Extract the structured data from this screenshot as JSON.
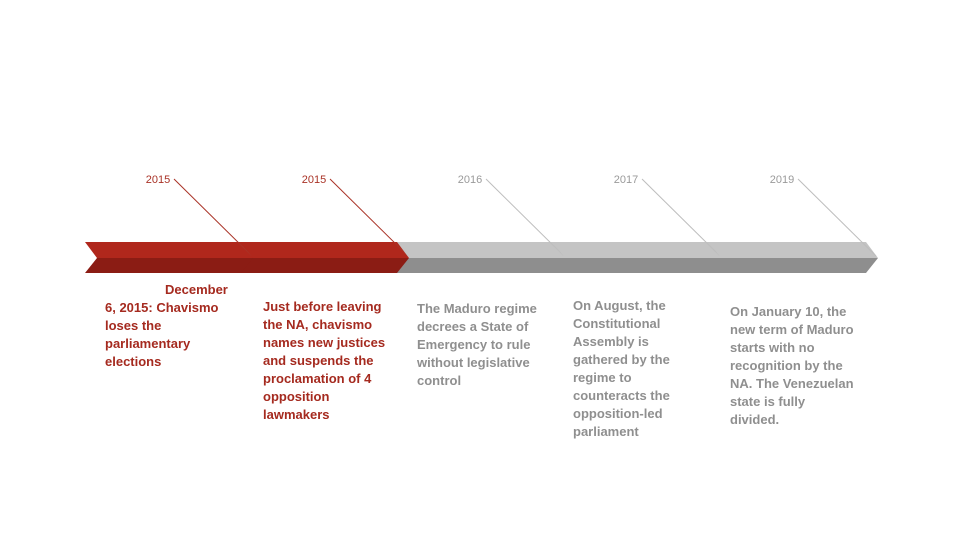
{
  "colors": {
    "active_top": "#b0271c",
    "active_bottom": "#8b1c14",
    "inactive_top": "#c4c4c4",
    "inactive_bottom": "#8e8e8e",
    "active_text": "#a52a1f",
    "inactive_text": "#8f8f8f",
    "active_leader": "#a93226",
    "inactive_leader": "#bdbdbd"
  },
  "events": [
    {
      "year": "2015",
      "active": true,
      "text": "December 6, 2015: Chavismo loses the parliamentary elections"
    },
    {
      "year": "2015",
      "active": true,
      "text": "Just before leaving the NA, chavismo names new justices and suspends the proclamation of 4 opposition lawmakers"
    },
    {
      "year": "2016",
      "active": false,
      "text": "The Maduro regime decrees a State of Emergency to rule without legislative control"
    },
    {
      "year": "2017",
      "active": false,
      "text": "On August, the Constitutional Assembly is gathered by the regime to counteracts the opposition-led parliament"
    },
    {
      "year": "2019",
      "active": false,
      "text": "On January 10, the new term of Maduro starts with no recognition by the NA. The Venezuelan state is fully divided."
    }
  ]
}
